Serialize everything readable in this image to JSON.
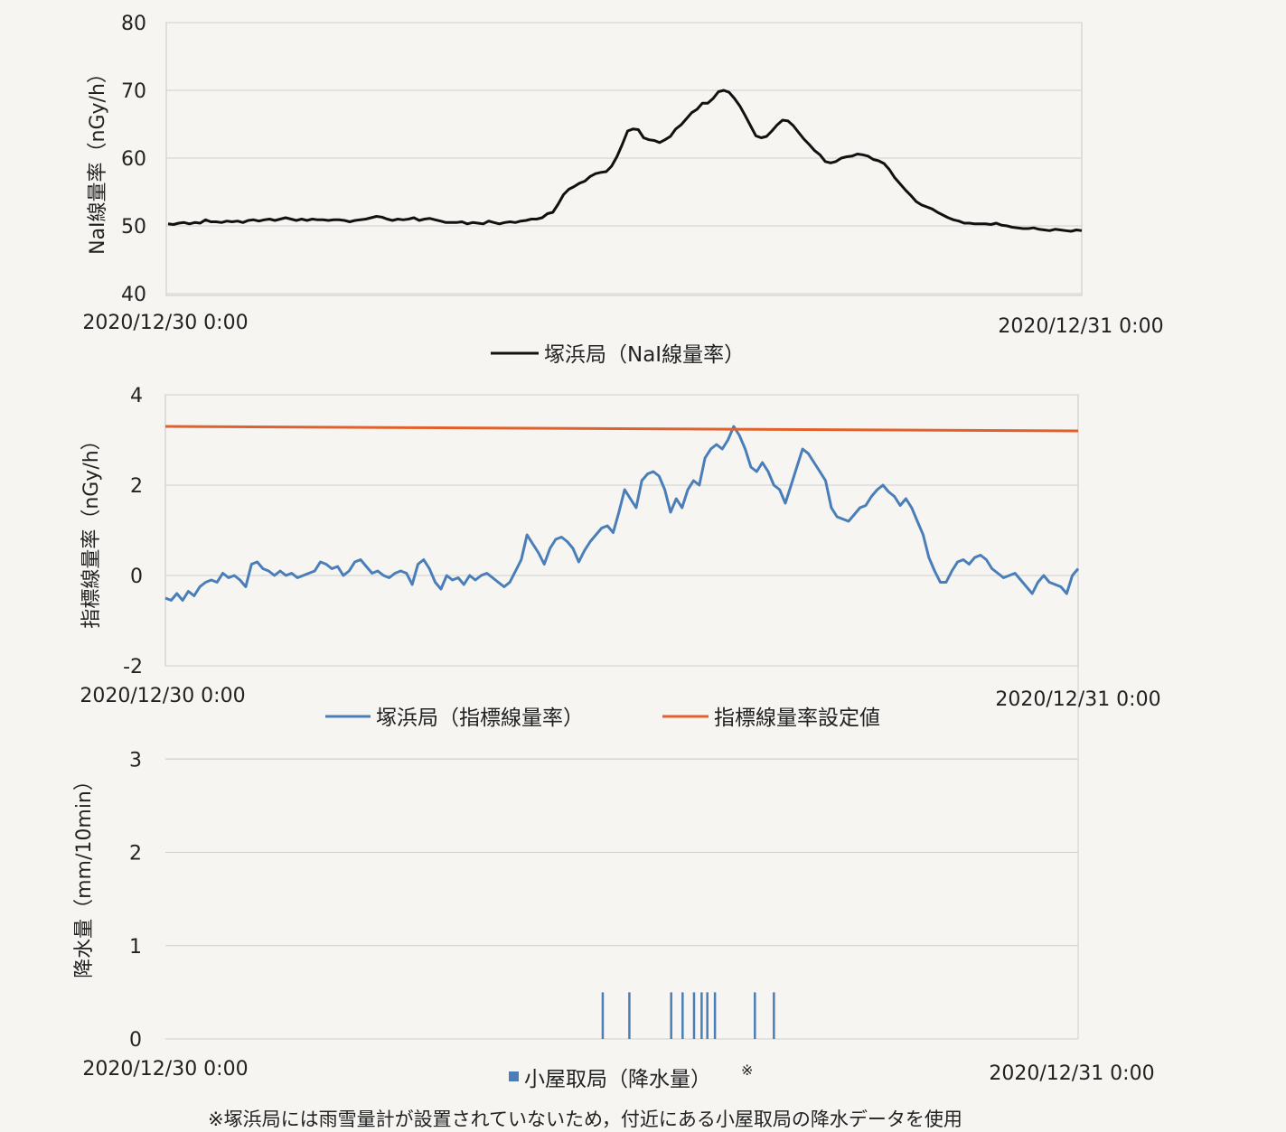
{
  "chart_data": [
    {
      "type": "line",
      "ylabel": "NaI線量率（nGy/h）",
      "ylim": [
        40,
        80
      ],
      "yticks": [
        40,
        50,
        60,
        70,
        80
      ],
      "x_start_label": "2020/12/30 0:00",
      "x_end_label": "2020/12/31 0:00",
      "grid": true,
      "legend_position": "bottom",
      "series": [
        {
          "name": "塚浜局（NaI線量率）",
          "color": "#111111",
          "values": [
            50.3,
            50.2,
            50.4,
            50.5,
            50.3,
            50.5,
            50.4,
            50.9,
            50.6,
            50.6,
            50.5,
            50.7,
            50.6,
            50.7,
            50.5,
            50.8,
            50.9,
            50.7,
            50.9,
            51.0,
            50.8,
            51.0,
            51.2,
            51.0,
            50.8,
            51.0,
            50.8,
            51.0,
            50.9,
            50.9,
            50.8,
            50.9,
            50.9,
            50.8,
            50.6,
            50.8,
            50.9,
            51.0,
            51.2,
            51.4,
            51.3,
            51.0,
            50.8,
            51.0,
            50.9,
            51.0,
            51.2,
            50.8,
            51.0,
            51.1,
            50.9,
            50.7,
            50.5,
            50.5,
            50.5,
            50.6,
            50.3,
            50.5,
            50.4,
            50.3,
            50.7,
            50.5,
            50.3,
            50.5,
            50.6,
            50.5,
            50.7,
            50.8,
            51.0,
            51.0,
            51.2,
            51.8,
            52.0,
            53.2,
            54.6,
            55.4,
            55.8,
            56.3,
            56.6,
            57.3,
            57.7,
            57.9,
            58.0,
            58.8,
            60.2,
            62.0,
            64.0,
            64.3,
            64.2,
            63.0,
            62.7,
            62.6,
            62.3,
            62.7,
            63.2,
            64.3,
            64.9,
            65.8,
            66.7,
            67.2,
            68.1,
            68.1,
            68.8,
            69.8,
            70.0,
            69.7,
            68.8,
            67.7,
            66.3,
            64.8,
            63.3,
            63.0,
            63.2,
            64.0,
            64.9,
            65.6,
            65.5,
            64.8,
            63.8,
            62.8,
            62.0,
            61.1,
            60.5,
            59.5,
            59.3,
            59.5,
            60.0,
            60.2,
            60.3,
            60.6,
            60.5,
            60.3,
            59.8,
            59.6,
            59.2,
            58.3,
            57.1,
            56.2,
            55.3,
            54.5,
            53.6,
            53.1,
            52.8,
            52.5,
            52.0,
            51.6,
            51.2,
            50.9,
            50.7,
            50.4,
            50.4,
            50.3,
            50.3,
            50.3,
            50.2,
            50.4,
            50.1,
            50.0,
            49.8,
            49.7,
            49.6,
            49.6,
            49.7,
            49.5,
            49.4,
            49.3,
            49.5,
            49.4,
            49.3,
            49.2,
            49.4,
            49.3
          ]
        }
      ]
    },
    {
      "type": "line",
      "ylabel": "指標線量率（nGy/h）",
      "ylim": [
        -2,
        4
      ],
      "yticks": [
        -2,
        0,
        2,
        4
      ],
      "x_start_label": "2020/12/30 0:00",
      "x_end_label": "2020/12/31 0:00",
      "grid": true,
      "legend_position": "bottom",
      "series": [
        {
          "name": "塚浜局（指標線量率）",
          "color": "#4a7eb8",
          "values": [
            -0.5,
            -0.55,
            -0.4,
            -0.55,
            -0.35,
            -0.45,
            -0.25,
            -0.15,
            -0.1,
            -0.15,
            0.05,
            -0.05,
            0.0,
            -0.1,
            -0.25,
            0.25,
            0.3,
            0.15,
            0.1,
            0.0,
            0.1,
            0.0,
            0.05,
            -0.05,
            0.0,
            0.05,
            0.1,
            0.3,
            0.25,
            0.15,
            0.2,
            0.0,
            0.1,
            0.3,
            0.35,
            0.2,
            0.05,
            0.1,
            0.0,
            -0.05,
            0.05,
            0.1,
            0.05,
            -0.2,
            0.25,
            0.35,
            0.15,
            -0.15,
            -0.3,
            0.0,
            -0.1,
            -0.05,
            -0.2,
            0.0,
            -0.1,
            0.0,
            0.05,
            -0.05,
            -0.15,
            -0.25,
            -0.15,
            0.1,
            0.35,
            0.9,
            0.7,
            0.5,
            0.25,
            0.6,
            0.8,
            0.85,
            0.75,
            0.6,
            0.3,
            0.55,
            0.75,
            0.9,
            1.05,
            1.1,
            0.95,
            1.4,
            1.9,
            1.7,
            1.5,
            2.1,
            2.25,
            2.3,
            2.2,
            1.9,
            1.4,
            1.7,
            1.5,
            1.9,
            2.1,
            2.0,
            2.6,
            2.8,
            2.9,
            2.8,
            3.0,
            3.3,
            3.1,
            2.8,
            2.4,
            2.3,
            2.5,
            2.3,
            2.0,
            1.9,
            1.6,
            2.0,
            2.4,
            2.8,
            2.7,
            2.5,
            2.3,
            2.1,
            1.5,
            1.3,
            1.25,
            1.2,
            1.35,
            1.5,
            1.55,
            1.75,
            1.9,
            2.0,
            1.85,
            1.75,
            1.55,
            1.7,
            1.5,
            1.2,
            0.9,
            0.4,
            0.1,
            -0.15,
            -0.15,
            0.1,
            0.3,
            0.35,
            0.25,
            0.4,
            0.45,
            0.35,
            0.15,
            0.05,
            -0.05,
            0.0,
            0.05,
            -0.1,
            -0.25,
            -0.4,
            -0.15,
            0.0,
            -0.15,
            -0.2,
            -0.25,
            -0.4,
            0.0,
            0.15
          ],
          "x_fraction_end": 1.0
        },
        {
          "name": "指標線量率設定値",
          "color": "#e0612b",
          "values": [
            3.3,
            3.2
          ]
        }
      ]
    },
    {
      "type": "bar",
      "ylabel": "降水量（mm/10min）",
      "ylim": [
        0,
        4
      ],
      "yticks": [
        0,
        1,
        2,
        3
      ],
      "x_start_label": "2020/12/30 0:00",
      "x_end_label": "2020/12/31 0:00",
      "grid": true,
      "legend_position": "bottom",
      "series": [
        {
          "name": "小屋取局（降水量）",
          "color": "#4a7eb8",
          "bars_hour_value": [
            [
              11.5,
              0.5
            ],
            [
              12.2,
              0.5
            ],
            [
              13.3,
              0.5
            ],
            [
              13.6,
              0.5
            ],
            [
              13.9,
              0.5
            ],
            [
              14.1,
              0.5
            ],
            [
              14.25,
              0.5
            ],
            [
              14.45,
              0.5
            ],
            [
              15.5,
              0.5
            ],
            [
              16.0,
              0.5
            ]
          ]
        }
      ]
    }
  ],
  "legend": {
    "top": "塚浜局（NaI線量率）",
    "mid_a": "塚浜局（指標線量率）",
    "mid_b": "指標線量率設定値",
    "bottom": "小屋取局（降水量）",
    "bottom_mark": "※"
  },
  "footnote": "※塚浜局には雨雪量計が設置されていないため，付近にある小屋取局の降水データを使用"
}
